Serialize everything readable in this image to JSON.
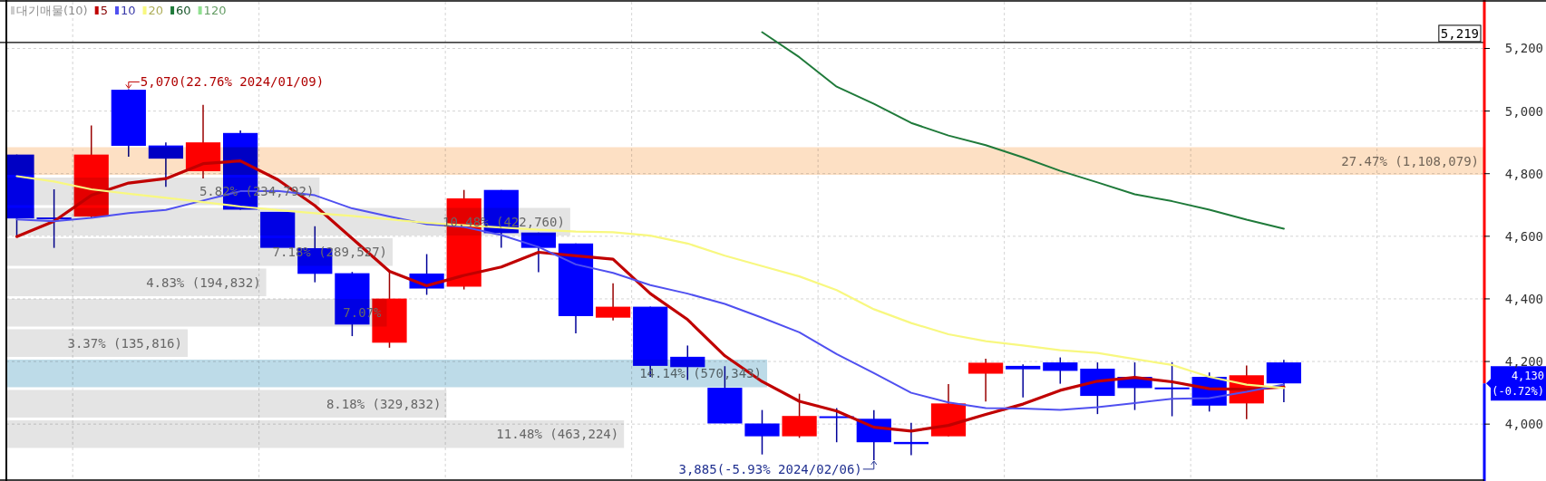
{
  "chart_data": [
    {
      "type": "bar",
      "orientation": "horizontal",
      "categories": [
        null,
        null,
        null,
        null,
        null,
        null,
        null,
        null,
        null,
        null
      ],
      "series": [
        {
          "name": "대기매물(10)",
          "color": "#cccccc",
          "values": [
            27.47,
            5.82,
            10.48,
            7.18,
            4.83,
            7.07,
            3.37,
            14.14,
            8.18,
            11.48
          ],
          "colors": [
            "#fde0c4",
            "#e4e4e4",
            "#e4e4e4",
            "#e4e4e4",
            "#e4e4e4",
            "#e4e4e4",
            "#e4e4e4",
            "#bddbe8",
            "#e4e4e4",
            "#e4e4e4"
          ],
          "value_labels": [
            "27.47% (1,108,079)",
            "5.82% (234,792)",
            "10.48% (422,760)",
            "7.18% (289,527)",
            "4.83% (194,832)",
            "7.07%",
            "3.37% (135,816)",
            "14.14% (570,343)",
            "8.18% (329,832)",
            "11.48% (463,224)"
          ]
        }
      ],
      "legend": "top left"
    },
    {
      "type": "candlestick",
      "categories": [
        null,
        null,
        null,
        null,
        null,
        null,
        null,
        null,
        null,
        null,
        null,
        null,
        null,
        null,
        null,
        null,
        null,
        null,
        null,
        null,
        null,
        null,
        null,
        null,
        null,
        null,
        null,
        null,
        null,
        null,
        null,
        null,
        null,
        null,
        null
      ],
      "ohlc": [
        [
          4861,
          4861,
          4599,
          4657
        ],
        [
          4660,
          4750,
          4563,
          4655
        ],
        [
          4663,
          4954,
          4660,
          4861
        ],
        [
          5068,
          5070,
          4854,
          4889
        ],
        [
          4890,
          4900,
          4758,
          4848
        ],
        [
          4808,
          5020,
          4785,
          4900
        ],
        [
          4930,
          4938,
          4685,
          4685
        ],
        [
          4678,
          4678,
          4563,
          4563
        ],
        [
          4562,
          4632,
          4453,
          4480
        ],
        [
          4482,
          4486,
          4281,
          4318
        ],
        [
          4260,
          4486,
          4244,
          4401
        ],
        [
          4481,
          4543,
          4413,
          4433
        ],
        [
          4439,
          4748,
          4430,
          4721
        ],
        [
          4748,
          4748,
          4563,
          4610
        ],
        [
          4612,
          4612,
          4485,
          4563
        ],
        [
          4577,
          4577,
          4290,
          4345
        ],
        [
          4340,
          4450,
          4331,
          4375
        ],
        [
          4375,
          4375,
          4151,
          4186
        ],
        [
          4215,
          4251,
          4141,
          4182
        ],
        [
          4116,
          4185,
          4002,
          4002
        ],
        [
          4002,
          4045,
          3903,
          3961
        ],
        [
          3961,
          4097,
          3956,
          4026
        ],
        [
          4025,
          4051,
          3942,
          4020
        ],
        [
          4017,
          4045,
          3885,
          3942
        ],
        [
          3943,
          4004,
          3901,
          3936
        ],
        [
          3961,
          4128,
          3961,
          4066
        ],
        [
          4161,
          4209,
          4072,
          4196
        ],
        [
          4186,
          4191,
          4085,
          4175
        ],
        [
          4197,
          4213,
          4129,
          4170
        ],
        [
          4177,
          4197,
          4032,
          4090
        ],
        [
          4151,
          4197,
          4045,
          4115
        ],
        [
          4117,
          4197,
          4025,
          4115
        ],
        [
          4151,
          4165,
          4040,
          4059
        ],
        [
          4066,
          4187,
          4016,
          4156
        ],
        [
          4197,
          4205,
          4070,
          4130
        ]
      ],
      "colors": [
        "#0000ff",
        "#0000ff",
        "#ff0000",
        "#0000ff",
        "#0000ff",
        "#ff0000",
        "#0000ff",
        "#0000ff",
        "#0000ff",
        "#0000ff",
        "#ff0000",
        "#0000ff",
        "#ff0000",
        "#0000ff",
        "#0000ff",
        "#0000ff",
        "#ff0000",
        "#0000ff",
        "#0000ff",
        "#0000ff",
        "#0000ff",
        "#ff0000",
        "#0000ff",
        "#0000ff",
        "#0000ff",
        "#ff0000",
        "#ff0000",
        "#0000ff",
        "#0000ff",
        "#0000ff",
        "#0000ff",
        "#0000ff",
        "#0000ff",
        "#ff0000",
        "#0000ff"
      ],
      "series": [
        {
          "name": "5",
          "type": "line",
          "color": "#c00000",
          "values": [
            4599,
            4648,
            4731,
            4770,
            4784,
            4832,
            4841,
            4781,
            4698,
            4593,
            4488,
            4442,
            4475,
            4502,
            4549,
            4538,
            4527,
            4417,
            4334,
            4218,
            4136,
            4073,
            4042,
            3990,
            3978,
            3996,
            4031,
            4064,
            4108,
            4137,
            4149,
            4135,
            4113,
            4111,
            4119
          ]
        },
        {
          "name": "10",
          "type": "line",
          "color": "#5050f0",
          "values": [
            4654,
            4648,
            4659,
            4674,
            4684,
            4714,
            4744,
            4745,
            4731,
            4689,
            4663,
            4639,
            4630,
            4604,
            4566,
            4510,
            4483,
            4444,
            4417,
            4384,
            4340,
            4293,
            4224,
            4163,
            4100,
            4069,
            4051,
            4050,
            4045,
            4054,
            4067,
            4081,
            4083,
            4103,
            4126
          ]
        },
        {
          "name": "20",
          "type": "line",
          "color": "#f8f880",
          "values": [
            4792,
            4775,
            4750,
            4736,
            4723,
            4709,
            4695,
            4684,
            4674,
            4665,
            4654,
            4643,
            4635,
            4628,
            4621,
            4615,
            4613,
            4602,
            4577,
            4538,
            4505,
            4472,
            4428,
            4367,
            4323,
            4287,
            4265,
            4251,
            4236,
            4227,
            4208,
            4189,
            4151,
            4126,
            4115
          ]
        },
        {
          "name": "60",
          "type": "line",
          "color": "#1f7a3a",
          "values": [
            null,
            null,
            null,
            null,
            null,
            null,
            null,
            null,
            null,
            null,
            null,
            null,
            null,
            null,
            null,
            null,
            null,
            null,
            null,
            null,
            5252,
            5172,
            5078,
            5023,
            4962,
            4922,
            4891,
            4852,
            4809,
            4772,
            4734,
            4712,
            4685,
            4653,
            4624
          ]
        },
        {
          "name": "120",
          "type": "line",
          "color": "#90e090",
          "values": [
            null,
            null,
            null,
            null,
            null,
            null,
            null,
            null,
            null,
            null,
            null,
            null,
            null,
            null,
            null,
            null,
            null,
            null,
            null,
            null,
            null,
            null,
            null,
            null,
            null,
            null,
            null,
            null,
            null,
            null,
            null,
            null,
            null,
            null,
            null
          ]
        }
      ],
      "ylim": [
        3824,
        5349
      ],
      "yticks": [
        {
          "value": 4000,
          "label": "4,000"
        },
        {
          "value": 4200,
          "label": "4,200"
        },
        {
          "value": 4400,
          "label": "4,400"
        },
        {
          "value": 4600,
          "label": "4,600"
        },
        {
          "value": 4800,
          "label": "4,800"
        },
        {
          "value": 5000,
          "label": "5,000"
        },
        {
          "value": 5200,
          "label": "5,200"
        }
      ],
      "ref_lines": [
        {
          "axis": "y",
          "value": 5219,
          "label": "5,219",
          "color": "#000000"
        }
      ],
      "annotations": [
        "5,070(22.76% 2024/01/09)",
        "3,885(-5.93% 2024/02/06)",
        "4,130\n(-0.72%)"
      ],
      "grid": true,
      "legend": "top left"
    }
  ]
}
